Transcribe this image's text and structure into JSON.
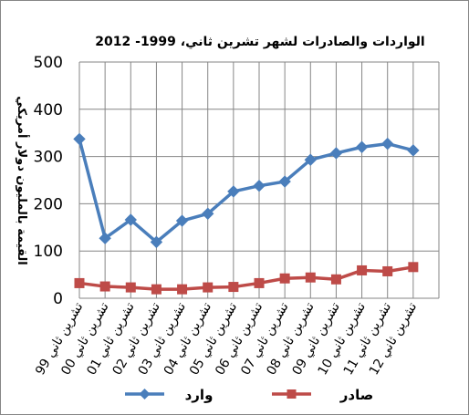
{
  "chart_data": {
    "type": "line",
    "title": "الواردات والصادرات لشهر تشرين ثاني، 1999- 2012",
    "ylabel": "القيمة بالمليون دولار أمريكي",
    "xlabel": "",
    "ylim": [
      0,
      500
    ],
    "yticks": [
      0,
      100,
      200,
      300,
      400,
      500
    ],
    "grid": true,
    "legend_position": "bottom",
    "categories": [
      "تشرين ثاني 99",
      "تشرين ثاني 00",
      "تشرين ثاني 01",
      "تشرين ثاني 02",
      "تشرين ثاني 03",
      "تشرين ثاني 04",
      "تشرين ثاني 05",
      "تشرين ثاني 06",
      "تشرين ثاني 07",
      "تشرين ثاني 08",
      "تشرين ثاني 09",
      "تشرين ثاني 10",
      "تشرين ثاني 11",
      "تشرين ثاني 12"
    ],
    "series": [
      {
        "name": "وارد",
        "color": "#4A7EBB",
        "marker": "diamond",
        "values": [
          337,
          127,
          166,
          119,
          164,
          179,
          226,
          238,
          247,
          293,
          307,
          320,
          327,
          313
        ]
      },
      {
        "name": "صادر",
        "color": "#BE4B48",
        "marker": "square",
        "values": [
          32,
          25,
          23,
          19,
          19,
          23,
          24,
          32,
          42,
          44,
          40,
          59,
          57,
          66
        ]
      }
    ]
  }
}
